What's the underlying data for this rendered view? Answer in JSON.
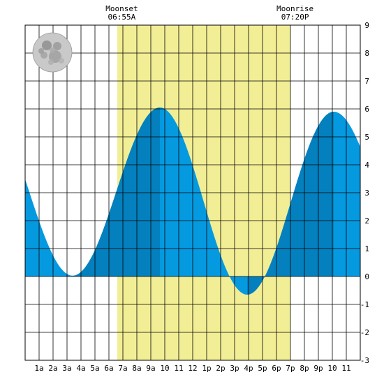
{
  "chart_data": {
    "type": "area",
    "title": "",
    "xlabel": "",
    "ylabel": "",
    "xlim": [
      0,
      24
    ],
    "ylim": [
      -3,
      9
    ],
    "y_ticks": [
      9,
      8,
      7,
      6,
      5,
      4,
      3,
      2,
      1,
      0,
      -1,
      -2,
      -3
    ],
    "x_ticks": [
      {
        "hour": 1,
        "label": "1a"
      },
      {
        "hour": 2,
        "label": "2a"
      },
      {
        "hour": 3,
        "label": "3a"
      },
      {
        "hour": 4,
        "label": "4a"
      },
      {
        "hour": 5,
        "label": "5a"
      },
      {
        "hour": 6,
        "label": "6a"
      },
      {
        "hour": 7,
        "label": "7a"
      },
      {
        "hour": 8,
        "label": "8a"
      },
      {
        "hour": 9,
        "label": "9a"
      },
      {
        "hour": 10,
        "label": "10"
      },
      {
        "hour": 11,
        "label": "11"
      },
      {
        "hour": 12,
        "label": "12"
      },
      {
        "hour": 13,
        "label": "1p"
      },
      {
        "hour": 14,
        "label": "2p"
      },
      {
        "hour": 15,
        "label": "3p"
      },
      {
        "hour": 16,
        "label": "4p"
      },
      {
        "hour": 17,
        "label": "5p"
      },
      {
        "hour": 18,
        "label": "6p"
      },
      {
        "hour": 19,
        "label": "7p"
      },
      {
        "hour": 20,
        "label": "8p"
      },
      {
        "hour": 21,
        "label": "9p"
      },
      {
        "hour": 22,
        "label": "10"
      },
      {
        "hour": 23,
        "label": "11"
      }
    ],
    "grid": true,
    "daylight": {
      "start_hour": 6.6,
      "end_hour": 19.0,
      "color": "#f2ee96"
    },
    "tide_extremes": [
      {
        "hour": 3.4,
        "height": 0.03,
        "kind": "low"
      },
      {
        "hour": 9.65,
        "height": 6.05,
        "kind": "high"
      },
      {
        "hour": 15.9,
        "height": -0.65,
        "kind": "low"
      },
      {
        "hour": 22.1,
        "height": 5.9,
        "kind": "high"
      }
    ],
    "series_start": {
      "hour": 0,
      "height": 3.5
    },
    "series_end": {
      "hour": 24,
      "height": 4.55
    },
    "colors": {
      "fill_light": "#0599e0",
      "fill_dark": "#0380bd",
      "grid": "#000000",
      "background": "#ffffff"
    },
    "annotations": [
      {
        "hour": 6.92,
        "label": "Moonset",
        "time": "06:55A"
      },
      {
        "hour": 19.33,
        "label": "Moonrise",
        "time": "07:20P"
      }
    ],
    "moon_icon": "full-moon-icon"
  }
}
